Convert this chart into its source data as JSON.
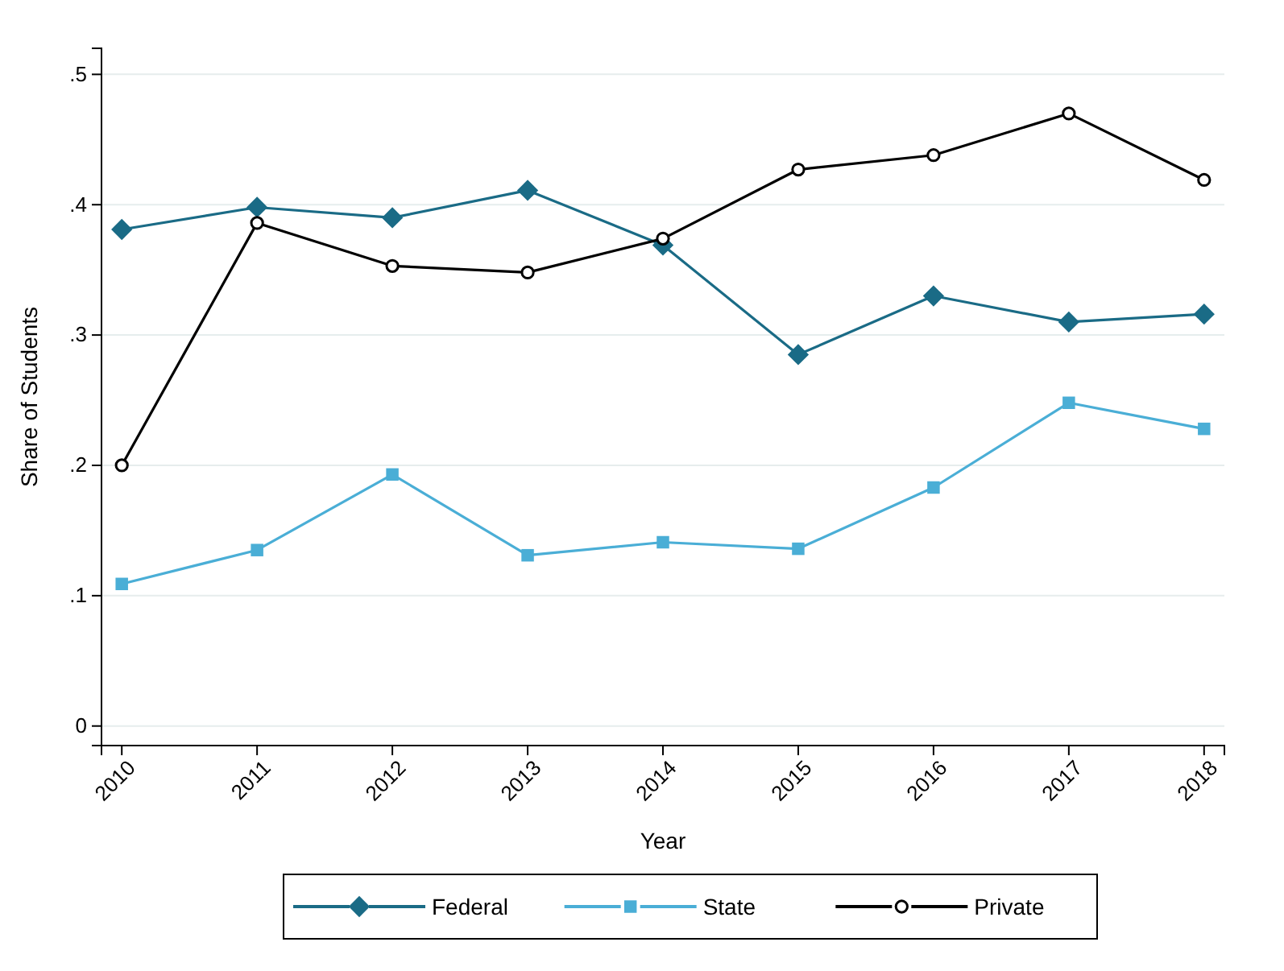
{
  "chart_data": {
    "type": "line",
    "xlabel": "Year",
    "ylabel": "Share of Students",
    "x": [
      2010,
      2011,
      2012,
      2013,
      2014,
      2015,
      2016,
      2017,
      2018
    ],
    "xlim": [
      2009.85,
      2018.15
    ],
    "xticks": [
      2010,
      2011,
      2012,
      2013,
      2014,
      2015,
      2016,
      2017,
      2018
    ],
    "ylim": [
      -0.015,
      0.52
    ],
    "yticks": [
      0,
      {
        "value": 0.1,
        "label": ".1"
      },
      {
        "value": 0.2,
        "label": ".2"
      },
      {
        "value": 0.3,
        "label": ".3"
      },
      {
        "value": 0.4,
        "label": ".4"
      },
      {
        "value": 0.5,
        "label": ".5"
      }
    ],
    "grid": "y",
    "legend": "bottom",
    "series": [
      {
        "name": "Federal",
        "color": "#1a6b86",
        "marker": "diamond",
        "values": [
          0.381,
          0.398,
          0.39,
          0.411,
          0.369,
          0.285,
          0.33,
          0.31,
          0.316
        ]
      },
      {
        "name": "State",
        "color": "#4aaed6",
        "marker": "square",
        "values": [
          0.109,
          0.135,
          0.193,
          0.131,
          0.141,
          0.136,
          0.183,
          0.248,
          0.228
        ]
      },
      {
        "name": "Private",
        "color": "#000000",
        "marker": "circle",
        "values": [
          0.2,
          0.386,
          0.353,
          0.348,
          0.374,
          0.427,
          0.438,
          0.47,
          0.419
        ]
      }
    ]
  }
}
